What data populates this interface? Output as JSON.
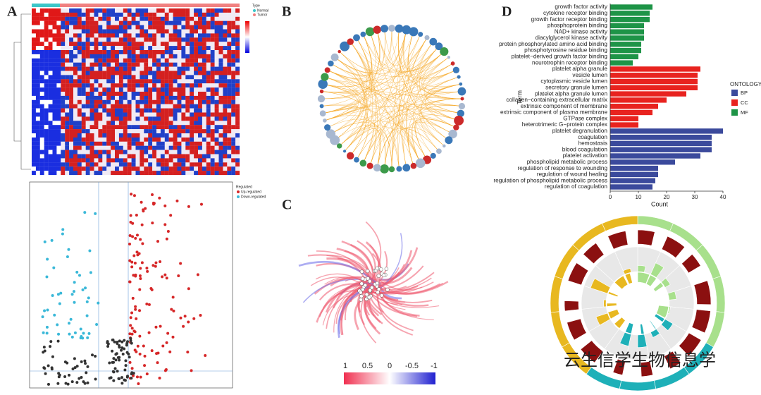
{
  "panel_labels": [
    "A",
    "B",
    "C",
    "D"
  ],
  "watermark": "云生信学生物信息学",
  "heatmap_legend": {
    "title": "Type",
    "items": [
      "Normal",
      "Tumor"
    ]
  },
  "volcano_legend": {
    "title": "Regulated",
    "items": [
      "Up-regulated",
      "Down-regulated"
    ]
  },
  "colorbar": {
    "ticks": [
      1,
      0.5,
      0,
      -0.5,
      -1
    ]
  },
  "chart_data": {
    "type": "barh",
    "xlabel": "Count",
    "ylabel": "Term",
    "legend_title": "ONTOLOGY",
    "legend": "right",
    "categories": [
      "growth factor activity",
      "cytokine receptor binding",
      "growth factor receptor binding",
      "phosphoprotein binding",
      "NAD+ kinase activity",
      "diacylglycerol kinase activity",
      "protein phosphorylated amino acid binding",
      "phosphotyrosine residue binding",
      "platelet−derived growth factor binding",
      "neurotrophin receptor binding",
      "platelet alpha granule",
      "vesicle lumen",
      "cytoplasmic vesicle lumen",
      "secretory granule lumen",
      "platelet alpha granule lumen",
      "collagen−containing extracellular matrix",
      "extrinsic component of membrane",
      "extrinsic component of plasma membrane",
      "GTPase complex",
      "heterotrimeric G−protein complex",
      "platelet degranulation",
      "coagulation",
      "hemostasis",
      "blood coagulation",
      "platelet activation",
      "phospholipid metabolic process",
      "regulation of response to wounding",
      "regulation of wound healing",
      "regulation of phospholipid metabolic process",
      "regulation of coagulation"
    ],
    "series": [
      {
        "name": "BP",
        "color": "#3b4a9c",
        "values": [
          null,
          null,
          null,
          null,
          null,
          null,
          null,
          null,
          null,
          null,
          null,
          null,
          null,
          null,
          null,
          null,
          null,
          null,
          null,
          null,
          40,
          36,
          36,
          36,
          32,
          23,
          17,
          17,
          16,
          15
        ]
      },
      {
        "name": "CC",
        "color": "#e8231f",
        "values": [
          null,
          null,
          null,
          null,
          null,
          null,
          null,
          null,
          null,
          null,
          32,
          31,
          31,
          31,
          27,
          20,
          17,
          15,
          10,
          10,
          null,
          null,
          null,
          null,
          null,
          null,
          null,
          null,
          null,
          null
        ]
      },
      {
        "name": "MF",
        "color": "#1e9447",
        "values": [
          15,
          14,
          14,
          12,
          12,
          12,
          11,
          11,
          10,
          8,
          null,
          null,
          null,
          null,
          null,
          null,
          null,
          null,
          null,
          null,
          null,
          null,
          null,
          null,
          null,
          null,
          null,
          null,
          null,
          null
        ]
      }
    ],
    "xlim": [
      0,
      40
    ],
    "xticks": [
      0,
      10,
      20,
      30,
      40
    ]
  }
}
